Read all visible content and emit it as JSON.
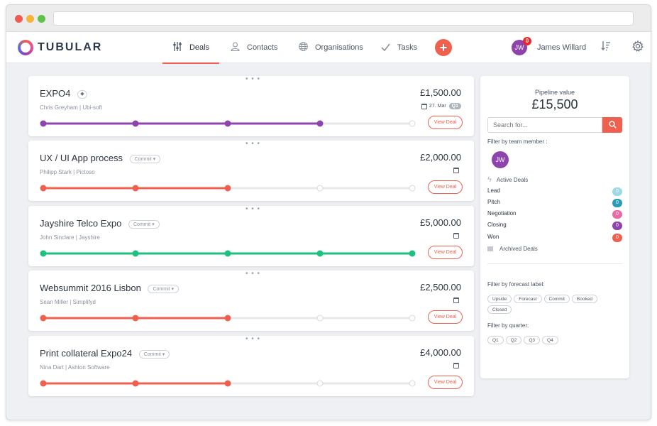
{
  "brand": {
    "name": "TUBULAR"
  },
  "nav": {
    "tabs": [
      {
        "label": "Deals",
        "icon": "sliders-icon"
      },
      {
        "label": "Contacts",
        "icon": "user-icon"
      },
      {
        "label": "Organisations",
        "icon": "globe-icon"
      },
      {
        "label": "Tasks",
        "icon": "check-icon"
      }
    ],
    "user": {
      "initials": "JW",
      "name": "James Willard",
      "notifications": "0"
    }
  },
  "deals": [
    {
      "title": "EXPO4",
      "subtitle": "Chris Greyham | Ubi-soft",
      "amount": "£1,500.00",
      "date": "27. Mar",
      "quarter": "Q1",
      "stage_reached": 4,
      "stages_total": 5,
      "color": "#8e44ad",
      "view_label": "View Deal"
    },
    {
      "title": "UX / UI App process",
      "forecast": "Commit",
      "subtitle": "Philipp Stark | Pictoso",
      "amount": "£2,000.00",
      "stage_reached": 3,
      "stages_total": 5,
      "color": "#f0604f",
      "view_label": "View Deal"
    },
    {
      "title": "Jayshire Telco Expo",
      "forecast": "Commit",
      "subtitle": "John Sinclare | Jayshire",
      "amount": "£5,000.00",
      "stage_reached": 5,
      "stages_total": 5,
      "color": "#1dc17e",
      "view_label": "View Deal"
    },
    {
      "title": "Websummit 2016 Lisbon",
      "forecast": "Commit",
      "subtitle": "Sean Miller | Simplifyd",
      "amount": "£2,500.00",
      "stage_reached": 3,
      "stages_total": 5,
      "color": "#f0604f",
      "view_label": "View Deal"
    },
    {
      "title": "Print collateral Expo24",
      "forecast": "Commit",
      "subtitle": "Nina Dart | Ashton Software",
      "amount": "£4,000.00",
      "stage_reached": 3,
      "stages_total": 5,
      "color": "#f0604f",
      "view_label": "View Deal"
    }
  ],
  "panel": {
    "pipeline_label": "Pipeline value",
    "pipeline_value": "£15,500",
    "search_placeholder": "Search for...",
    "team_label": "Filter by team member :",
    "member_initials": "JW",
    "active_label": "Active Deals",
    "stages": [
      {
        "name": "Lead",
        "count": "0",
        "color": "#9fd9e3"
      },
      {
        "name": "Pitch",
        "count": "0",
        "color": "#2e9bb5"
      },
      {
        "name": "Negotiation",
        "count": "0",
        "color": "#e96aa5"
      },
      {
        "name": "Closing",
        "count": "0",
        "color": "#8e44ad"
      },
      {
        "name": "Won",
        "count": "0",
        "color": "#f0604f"
      }
    ],
    "archived_label": "Archived Deals",
    "forecast_label": "Filter by forecast label:",
    "forecast_chips": [
      "Upside",
      "Forecast",
      "Commit",
      "Booked",
      "Closed"
    ],
    "quarter_label": "Filter by quarter:",
    "quarter_chips": [
      "Q1",
      "Q2",
      "Q3",
      "Q4"
    ]
  }
}
